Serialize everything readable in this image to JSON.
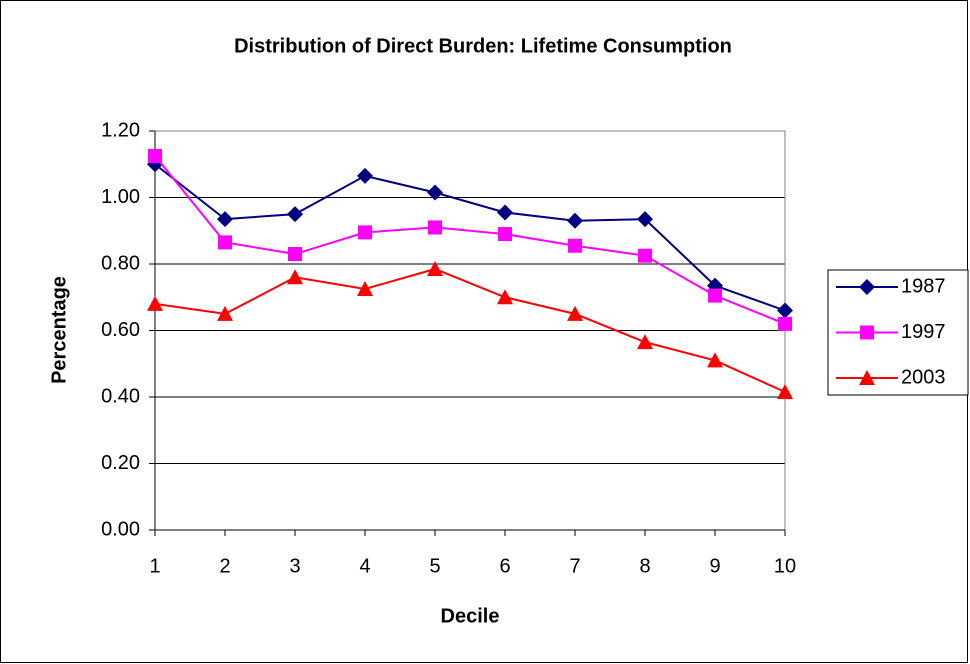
{
  "chart_data": {
    "type": "line",
    "title": "Distribution of Direct Burden: Lifetime Consumption",
    "x_label": "Decile",
    "y_label": "Percentage",
    "x": [
      1,
      2,
      3,
      4,
      5,
      6,
      7,
      8,
      9,
      10
    ],
    "series": [
      {
        "name": "1987",
        "color": "#000080",
        "marker": "diamond",
        "values": [
          1.1,
          0.935,
          0.95,
          1.065,
          1.015,
          0.955,
          0.93,
          0.935,
          0.735,
          0.66
        ]
      },
      {
        "name": "1997",
        "color": "#ff00ff",
        "marker": "square",
        "values": [
          1.125,
          0.865,
          0.83,
          0.895,
          0.91,
          0.89,
          0.855,
          0.825,
          0.705,
          0.62
        ]
      },
      {
        "name": "2003",
        "color": "#ff0000",
        "marker": "triangle",
        "values": [
          0.68,
          0.65,
          0.76,
          0.725,
          0.785,
          0.7,
          0.65,
          0.565,
          0.51,
          0.415
        ]
      }
    ],
    "xlim": [
      1,
      10
    ],
    "xticks": [
      1,
      2,
      3,
      4,
      5,
      6,
      7,
      8,
      9,
      10
    ],
    "ylim": [
      0,
      1.2
    ],
    "yticks": [
      {
        "value": 0,
        "label": "0.00"
      },
      {
        "value": 0.2,
        "label": "0.20"
      },
      {
        "value": 0.4,
        "label": "0.40"
      },
      {
        "value": 0.6,
        "label": "0.60"
      },
      {
        "value": 0.8,
        "label": "0.80"
      },
      {
        "value": 1.0,
        "label": "1.00"
      },
      {
        "value": 1.2,
        "label": "1.20"
      }
    ],
    "grid": true,
    "legend": "right"
  }
}
